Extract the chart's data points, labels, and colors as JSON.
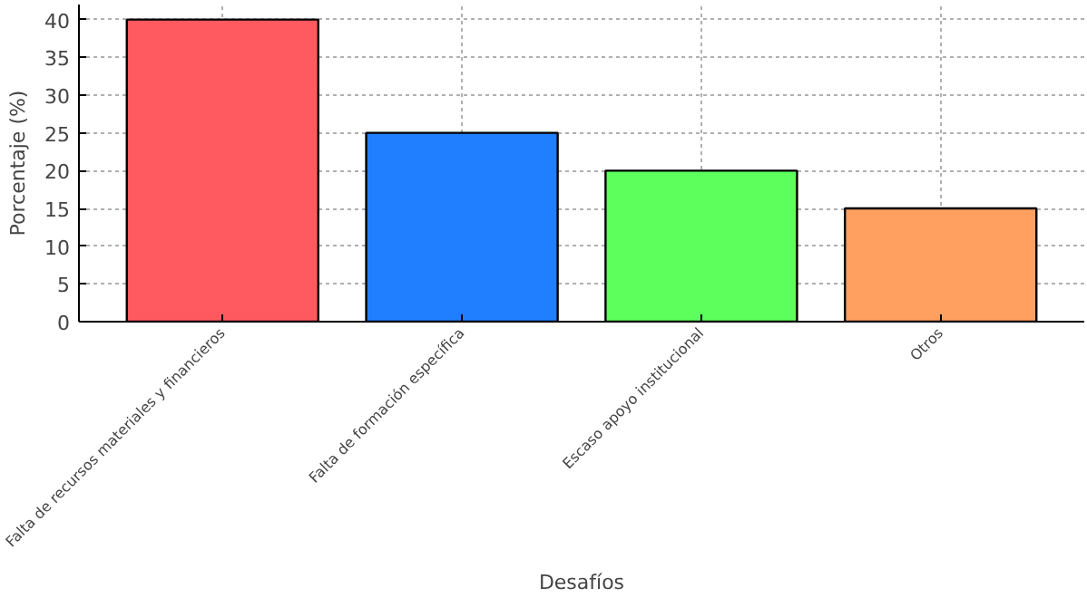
{
  "chart_data": {
    "type": "bar",
    "xlabel": "Desafíos",
    "ylabel": "Porcentaje (%)",
    "categories": [
      "Falta de recursos materiales y financieros",
      "Falta de formación específica",
      "Escaso apoyo institucional",
      "Otros"
    ],
    "values": [
      40,
      25,
      20,
      15
    ],
    "colors": [
      "#ff5a5f",
      "#1f7fff",
      "#5cff5c",
      "#ffa060"
    ],
    "ylim": [
      0,
      42
    ],
    "yticks": [
      0,
      5,
      10,
      15,
      20,
      25,
      30,
      35,
      40
    ],
    "grid": true
  }
}
